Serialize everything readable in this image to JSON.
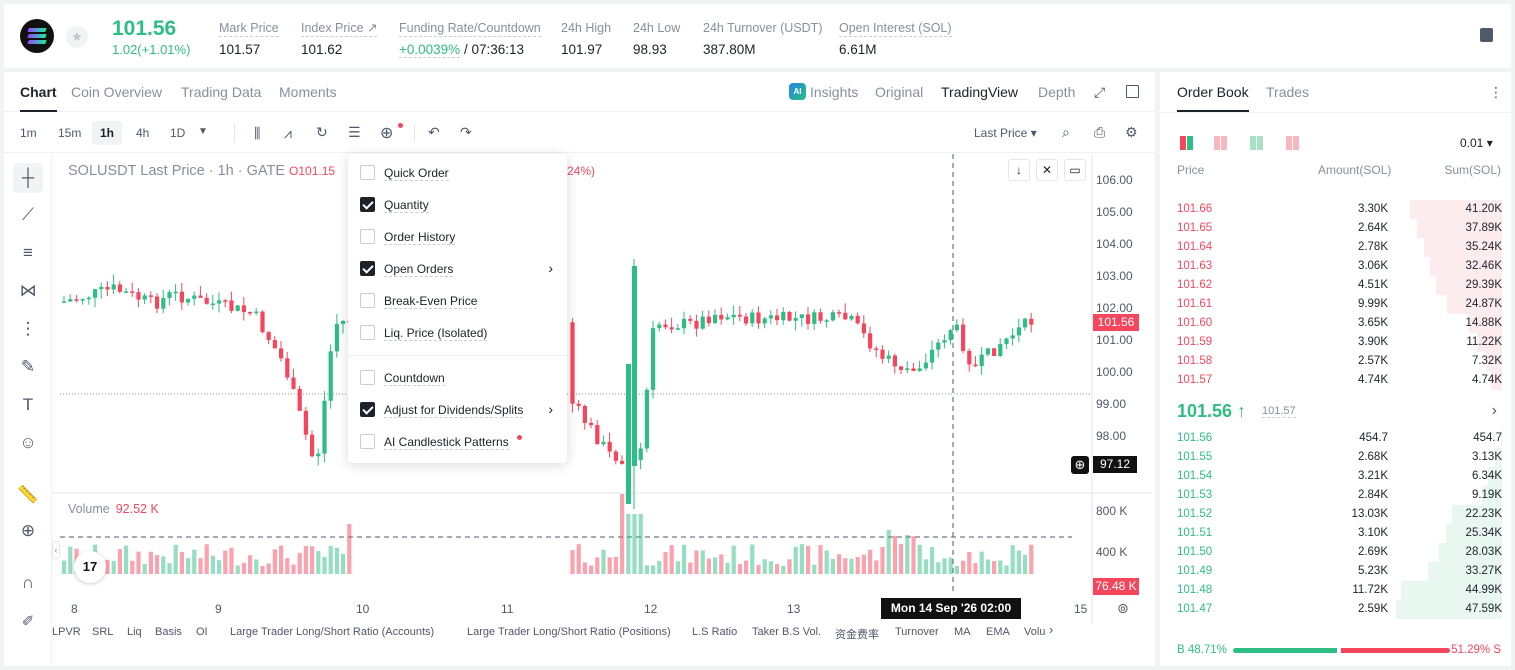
{
  "header": {
    "price": "101.56",
    "change": "1.02(+1.01%)",
    "stats": [
      {
        "label": "Mark Price",
        "value": "101.57"
      },
      {
        "label": "Index Price ↗",
        "value": "101.62"
      },
      {
        "label": "Funding Rate/Countdown",
        "value_green": "+0.0039%",
        "value": " / 07:36:13"
      },
      {
        "label": "24h High",
        "value": "101.97"
      },
      {
        "label": "24h Low",
        "value": "98.93"
      },
      {
        "label": "24h Turnover (USDT)",
        "value": "387.80M"
      },
      {
        "label": "Open Interest (SOL)",
        "value": "6.61M"
      }
    ]
  },
  "tabs": {
    "chart": "Chart",
    "coin_overview": "Coin Overview",
    "trading_data": "Trading Data",
    "moments": "Moments",
    "insights": "Insights",
    "original": "Original",
    "tradingview": "TradingView",
    "depth": "Depth",
    "ai_badge": "AI"
  },
  "toolbar": {
    "timeframes": [
      "1m",
      "15m",
      "1h",
      "4h",
      "1D"
    ],
    "last_price": "Last Price"
  },
  "chart": {
    "title": "SOLUSDT Last Price · 1h · GATE",
    "open": "O101.15",
    "pct_fragment": "24%)",
    "y_ticks": [
      "106.00",
      "105.00",
      "104.00",
      "103.00",
      "102.00",
      "101.00",
      "100.00",
      "99.00",
      "98.00"
    ],
    "last_price_tag": "101.56",
    "crosshair_price": "97.12",
    "volume_label": "Volume",
    "volume_value": "92.52 K",
    "vol_ticks": [
      "800 K",
      "400 K"
    ],
    "vol_tag": "76.48 K",
    "x_ticks": [
      "8",
      "9",
      "10",
      "11",
      "12",
      "13",
      "15"
    ],
    "crosshair_time": "Mon 14 Sep '26    02:00",
    "tv_logo": "17",
    "colors": {
      "up": "#2ebd85",
      "down": "#f6465d"
    }
  },
  "indicators": [
    "LPVR",
    "SRL",
    "Liq",
    "Basis",
    "OI",
    "Large Trader Long/Short Ratio (Accounts)",
    "Large Trader Long/Short Ratio (Positions)",
    "L.S Ratio",
    "Taker B.S Vol.",
    "资金费率",
    "Turnover",
    "MA",
    "EMA",
    "Volu"
  ],
  "dropdown": [
    {
      "label": "Quick Order",
      "checked": false
    },
    {
      "label": "Quantity",
      "checked": true
    },
    {
      "label": "Order History",
      "checked": false
    },
    {
      "label": "Open Orders",
      "checked": true,
      "arrow": true
    },
    {
      "label": "Break-Even Price",
      "checked": false
    },
    {
      "label": "Liq. Price (Isolated)",
      "checked": false
    },
    {
      "label": "Countdown",
      "checked": false
    },
    {
      "label": "Adjust for Dividends/Splits",
      "checked": true,
      "arrow": true
    },
    {
      "label": "AI Candlestick Patterns",
      "checked": false,
      "dot": true
    }
  ],
  "orderbook": {
    "tab_book": "Order Book",
    "tab_trades": "Trades",
    "precision": "0.01",
    "headers": {
      "price": "Price",
      "amount": "Amount(SOL)",
      "sum": "Sum(SOL)"
    },
    "asks": [
      {
        "p": "101.66",
        "a": "3.30K",
        "s": "41.20K",
        "d": 0.87
      },
      {
        "p": "101.65",
        "a": "2.64K",
        "s": "37.89K",
        "d": 0.8
      },
      {
        "p": "101.64",
        "a": "2.78K",
        "s": "35.24K",
        "d": 0.74
      },
      {
        "p": "101.63",
        "a": "3.06K",
        "s": "32.46K",
        "d": 0.68
      },
      {
        "p": "101.62",
        "a": "4.51K",
        "s": "29.39K",
        "d": 0.62
      },
      {
        "p": "101.61",
        "a": "9.99K",
        "s": "24.87K",
        "d": 0.52
      },
      {
        "p": "101.60",
        "a": "3.65K",
        "s": "14.88K",
        "d": 0.31
      },
      {
        "p": "101.59",
        "a": "3.90K",
        "s": "11.22K",
        "d": 0.24
      },
      {
        "p": "101.58",
        "a": "2.57K",
        "s": "7.32K",
        "d": 0.15
      },
      {
        "p": "101.57",
        "a": "4.74K",
        "s": "4.74K",
        "d": 0.1
      }
    ],
    "mid": "101.56 ↑",
    "mid_mark": "101.57",
    "bids": [
      {
        "p": "101.56",
        "a": "454.7",
        "s": "454.7",
        "d": 0.01
      },
      {
        "p": "101.55",
        "a": "2.68K",
        "s": "3.13K",
        "d": 0.07
      },
      {
        "p": "101.54",
        "a": "3.21K",
        "s": "6.34K",
        "d": 0.13
      },
      {
        "p": "101.53",
        "a": "2.84K",
        "s": "9.19K",
        "d": 0.19
      },
      {
        "p": "101.52",
        "a": "13.03K",
        "s": "22.23K",
        "d": 0.47
      },
      {
        "p": "101.51",
        "a": "3.10K",
        "s": "25.34K",
        "d": 0.53
      },
      {
        "p": "101.50",
        "a": "2.69K",
        "s": "28.03K",
        "d": 0.59
      },
      {
        "p": "101.49",
        "a": "5.23K",
        "s": "33.27K",
        "d": 0.7
      },
      {
        "p": "101.48",
        "a": "11.72K",
        "s": "44.99K",
        "d": 0.95
      },
      {
        "p": "101.47",
        "a": "2.59K",
        "s": "47.59K",
        "d": 1.0
      }
    ],
    "buy_ratio": "B 48.71%",
    "sell_ratio": "51.29% S",
    "buy_fraction": 0.4871
  }
}
